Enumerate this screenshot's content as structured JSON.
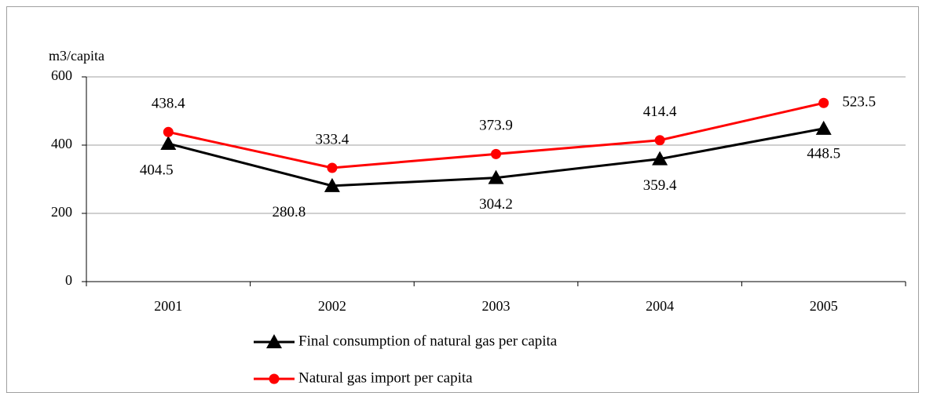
{
  "chart_data": {
    "type": "line",
    "y_label": "m3/capita",
    "categories": [
      "2001",
      "2002",
      "2003",
      "2004",
      "2005"
    ],
    "series": [
      {
        "name": "Final consumption of natural gas per capita",
        "color": "#000000",
        "marker": "triangle",
        "values": [
          404.5,
          280.8,
          304.2,
          359.4,
          448.5
        ]
      },
      {
        "name": "Natural gas import per capita",
        "color": "#ff0000",
        "marker": "circle",
        "values": [
          438.4,
          333.4,
          373.9,
          414.4,
          523.5
        ]
      }
    ],
    "ylim": [
      0,
      600
    ],
    "yticks": [
      0,
      200,
      400,
      600
    ],
    "grid": true,
    "legend": "bottom"
  }
}
